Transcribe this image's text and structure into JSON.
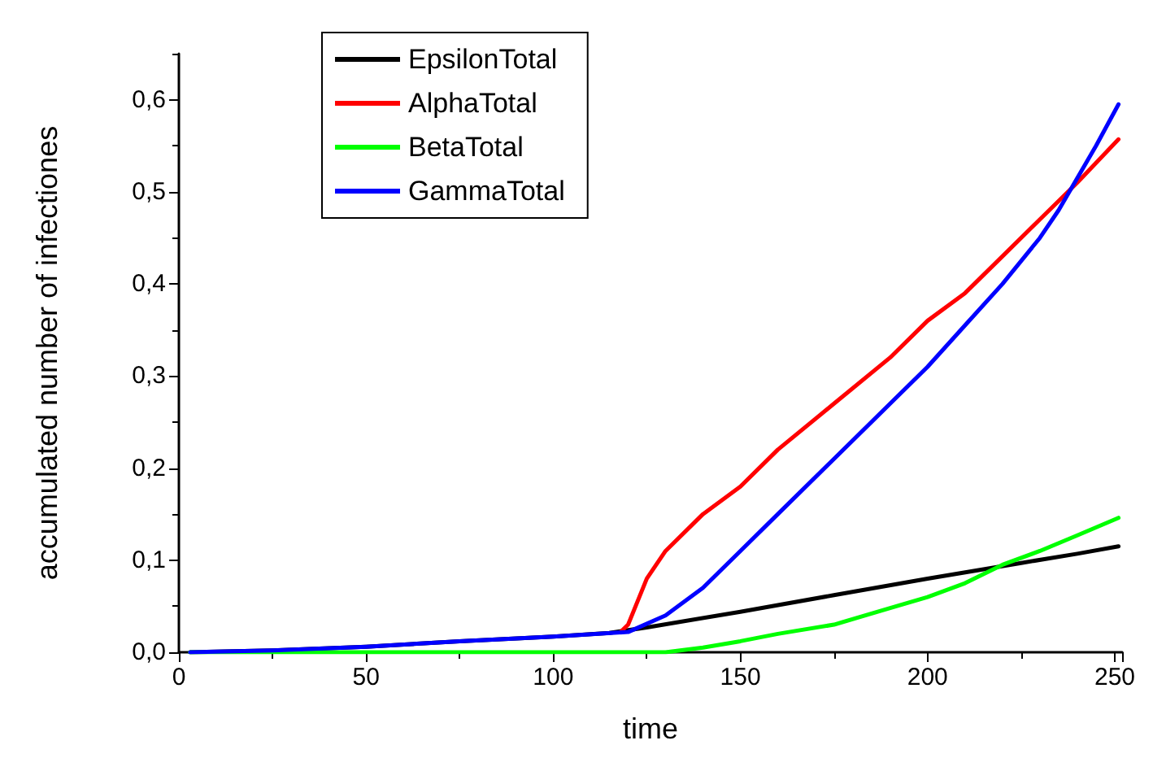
{
  "chart_data": {
    "type": "line",
    "xlabel": "time",
    "ylabel": "accumulated number of infectiones",
    "xlim": [
      0,
      252
    ],
    "xticks": [
      0,
      50,
      100,
      150,
      200,
      250
    ],
    "ylim": [
      0,
      0.65
    ],
    "yticks": [
      {
        "value": 0,
        "label": "0,0"
      },
      {
        "value": 0.1,
        "label": "0,1"
      },
      {
        "value": 0.2,
        "label": "0,2"
      },
      {
        "value": 0.3,
        "label": "0,3"
      },
      {
        "value": 0.4,
        "label": "0,4"
      },
      {
        "value": 0.5,
        "label": "0,5"
      },
      {
        "value": 0.6,
        "label": "0,6"
      }
    ],
    "grid": false,
    "legend": "top left",
    "marker": "none",
    "line_style": "solid",
    "series": [
      {
        "name": "EpsilonTotal",
        "color": "#000000",
        "x": [
          3,
          25,
          50,
          75,
          100,
          115,
          125,
          150,
          175,
          200,
          225,
          240,
          251
        ],
        "values": [
          0,
          0.002,
          0.006,
          0.012,
          0.017,
          0.021,
          0.027,
          0.044,
          0.062,
          0.08,
          0.097,
          0.107,
          0.115
        ]
      },
      {
        "name": "AlphaTotal",
        "color": "#ff0000",
        "x": [
          118,
          120,
          125,
          130,
          140,
          150,
          160,
          175,
          190,
          200,
          210,
          220,
          230,
          240,
          251
        ],
        "values": [
          0.022,
          0.03,
          0.08,
          0.11,
          0.15,
          0.18,
          0.22,
          0.27,
          0.32,
          0.36,
          0.39,
          0.43,
          0.47,
          0.51,
          0.557
        ]
      },
      {
        "name": "BetaTotal",
        "color": "#00ff00",
        "x": [
          3,
          50,
          100,
          130,
          140,
          150,
          160,
          175,
          190,
          200,
          210,
          220,
          230,
          240,
          251
        ],
        "values": [
          0,
          0,
          0,
          0,
          0.005,
          0.012,
          0.02,
          0.03,
          0.048,
          0.06,
          0.075,
          0.095,
          0.11,
          0.127,
          0.146
        ]
      },
      {
        "name": "GammaTotal",
        "color": "#0000ff",
        "x": [
          3,
          25,
          50,
          75,
          100,
          120,
          130,
          140,
          150,
          160,
          175,
          190,
          200,
          210,
          220,
          230,
          235,
          245,
          251
        ],
        "values": [
          0,
          0.002,
          0.006,
          0.012,
          0.017,
          0.022,
          0.04,
          0.07,
          0.11,
          0.15,
          0.21,
          0.27,
          0.31,
          0.355,
          0.4,
          0.45,
          0.48,
          0.55,
          0.595
        ]
      }
    ]
  }
}
